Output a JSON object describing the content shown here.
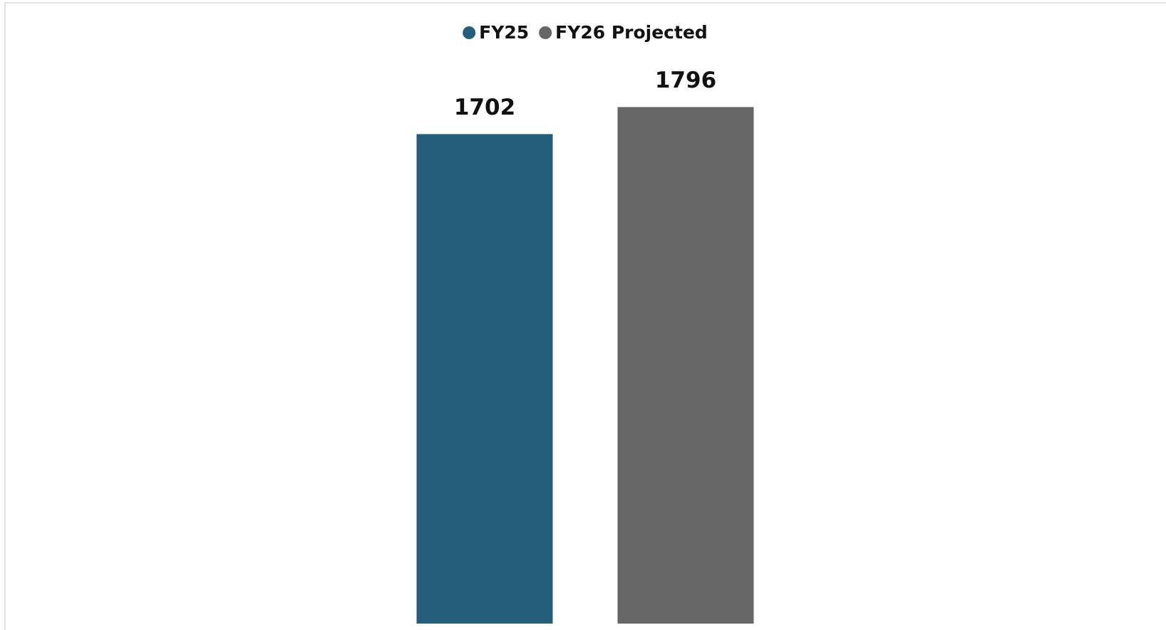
{
  "chart_data": {
    "type": "bar",
    "categories": [
      null
    ],
    "series": [
      {
        "name": "FY25",
        "color": "#255e7a",
        "values": [
          1702
        ]
      },
      {
        "name": "FY26 Projected",
        "color": "#666666",
        "values": [
          1796
        ]
      }
    ],
    "ylim": [
      0,
      2000
    ]
  }
}
